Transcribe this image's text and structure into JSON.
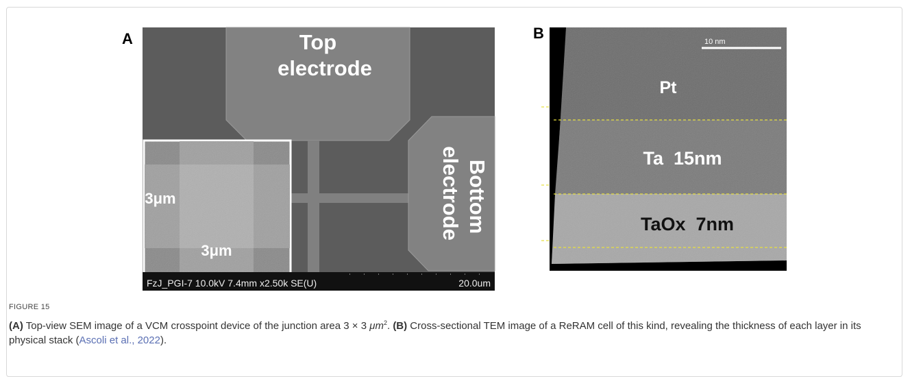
{
  "figure": {
    "panel_a": {
      "label": "A",
      "top_electrode": [
        "Top",
        "electrode"
      ],
      "bottom_electrode": [
        "Bottom",
        "electrode"
      ],
      "inset_width": "3μm",
      "inset_height": "3μm",
      "info_bar": "FzJ_PGI-7 10.0kV 7.4mm x2.50k SE(U)",
      "scale_bar": "20.0um"
    },
    "panel_b": {
      "label": "B",
      "scale_bar": "10 nm",
      "layers": [
        "Pt",
        "Ta  15nm",
        "TaOx  7nm"
      ]
    },
    "caption": {
      "number": "FIGURE 15",
      "a_tag": "(A)",
      "a_text": " Top-view SEM image of a VCM crosspoint device of the junction area 3 × 3 ",
      "a_unit": "μm",
      "a_sup": "2",
      "a_end": ". ",
      "b_tag": "(B)",
      "b_text": " Cross-sectional TEM image of a ReRAM cell of this kind, revealing the thickness of each layer in its physical stack (",
      "b_ref": "Ascoli et al., 2022",
      "b_end": ")."
    }
  }
}
